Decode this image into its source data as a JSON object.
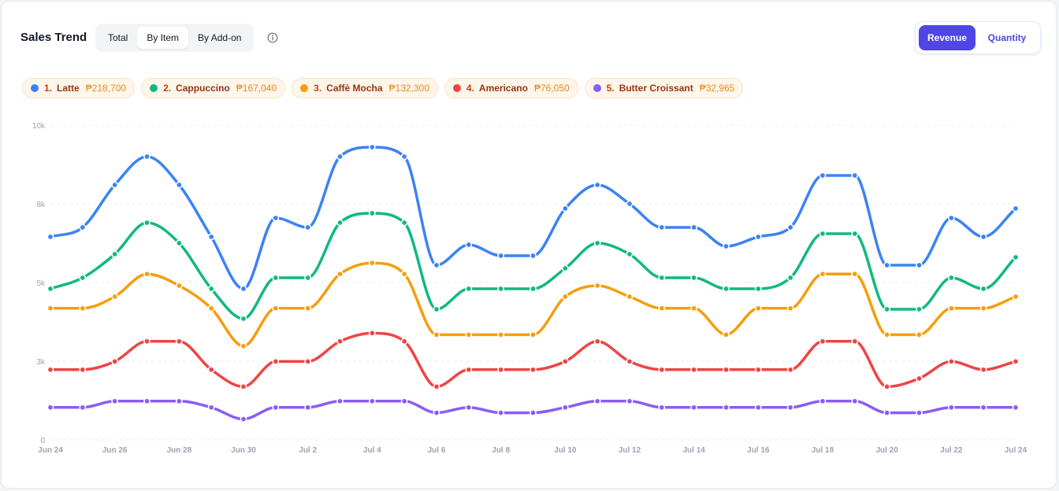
{
  "header": {
    "title": "Sales Trend",
    "tabs": [
      {
        "label": "Total",
        "active": false
      },
      {
        "label": "By Item",
        "active": true
      },
      {
        "label": "By Add-on",
        "active": false
      }
    ],
    "info_icon": "info-circle-icon",
    "metric_toggle": [
      {
        "label": "Revenue",
        "active": true
      },
      {
        "label": "Quantity",
        "active": false
      }
    ]
  },
  "legend": [
    {
      "rank": "1.",
      "name": "Latte",
      "value": "₱218,700",
      "color": "#3b82f6"
    },
    {
      "rank": "2.",
      "name": "Cappuccino",
      "value": "₱167,040",
      "color": "#10b981"
    },
    {
      "rank": "3.",
      "name": "Caffè Mocha",
      "value": "₱132,300",
      "color": "#f59e0b"
    },
    {
      "rank": "4.",
      "name": "Americano",
      "value": "₱76,050",
      "color": "#ef4444"
    },
    {
      "rank": "5.",
      "name": "Butter Croissant",
      "value": "₱32,965",
      "color": "#8b5cf6"
    }
  ],
  "chart_data": {
    "type": "line",
    "curve": "smooth",
    "grid": true,
    "ylim": [
      0,
      10000
    ],
    "y_ticks": [
      {
        "value": 0,
        "label": "0"
      },
      {
        "value": 2500,
        "label": "3k"
      },
      {
        "value": 5000,
        "label": "5k"
      },
      {
        "value": 7500,
        "label": "8k"
      },
      {
        "value": 10000,
        "label": "10k"
      }
    ],
    "x": [
      "Jun 24",
      "Jun 25",
      "Jun 26",
      "Jun 27",
      "Jun 28",
      "Jun 29",
      "Jun 30",
      "Jul 1",
      "Jul 2",
      "Jul 3",
      "Jul 4",
      "Jul 5",
      "Jul 6",
      "Jul 7",
      "Jul 8",
      "Jul 9",
      "Jul 10",
      "Jul 11",
      "Jul 12",
      "Jul 13",
      "Jul 14",
      "Jul 15",
      "Jul 16",
      "Jul 17",
      "Jul 18",
      "Jul 19",
      "Jul 20",
      "Jul 21",
      "Jul 22",
      "Jul 23",
      "Jul 24"
    ],
    "x_tick_labels": [
      "Jun 24",
      "Jun 26",
      "Jun 28",
      "Jun 30",
      "Jul 2",
      "Jul 4",
      "Jul 6",
      "Jul 8",
      "Jul 10",
      "Jul 12",
      "Jul 14",
      "Jul 16",
      "Jul 18",
      "Jul 20",
      "Jul 22",
      "Jul 24"
    ],
    "series": [
      {
        "name": "Latte",
        "color": "#3b82f6",
        "values": [
          6450,
          6750,
          8100,
          9000,
          8100,
          6450,
          4800,
          7050,
          6750,
          9000,
          9300,
          9000,
          5550,
          6200,
          5850,
          5850,
          7350,
          8100,
          7500,
          6750,
          6750,
          6150,
          6450,
          6750,
          8400,
          8400,
          5550,
          5550,
          7050,
          6450,
          7350
        ]
      },
      {
        "name": "Cappuccino",
        "color": "#10b981",
        "values": [
          4800,
          5150,
          5900,
          6900,
          6250,
          4800,
          3850,
          5150,
          5150,
          6900,
          7200,
          6900,
          4150,
          4800,
          4800,
          4800,
          5450,
          6250,
          5900,
          5150,
          5150,
          4800,
          4800,
          5150,
          6550,
          6550,
          4150,
          4150,
          5150,
          4800,
          5800
        ]
      },
      {
        "name": "Caffè Mocha",
        "color": "#f59e0b",
        "values": [
          4180,
          4180,
          4550,
          5270,
          4900,
          4180,
          2980,
          4180,
          4180,
          5270,
          5620,
          5270,
          3340,
          3340,
          3340,
          3340,
          4550,
          4900,
          4550,
          4180,
          4180,
          3340,
          4180,
          4180,
          5270,
          5270,
          3340,
          3340,
          4180,
          4180,
          4550
        ]
      },
      {
        "name": "Americano",
        "color": "#ef4444",
        "values": [
          2230,
          2230,
          2490,
          3130,
          3130,
          2230,
          1690,
          2490,
          2490,
          3130,
          3390,
          3130,
          1690,
          2230,
          2230,
          2230,
          2490,
          3130,
          2490,
          2230,
          2230,
          2230,
          2230,
          2230,
          3130,
          3130,
          1690,
          1950,
          2490,
          2230,
          2490
        ]
      },
      {
        "name": "Butter Croissant",
        "color": "#8b5cf6",
        "values": [
          1030,
          1030,
          1230,
          1230,
          1230,
          1030,
          660,
          1030,
          1030,
          1230,
          1230,
          1230,
          860,
          1030,
          860,
          860,
          1030,
          1230,
          1230,
          1030,
          1030,
          1030,
          1030,
          1030,
          1230,
          1230,
          860,
          860,
          1030,
          1030,
          1030
        ]
      }
    ]
  }
}
